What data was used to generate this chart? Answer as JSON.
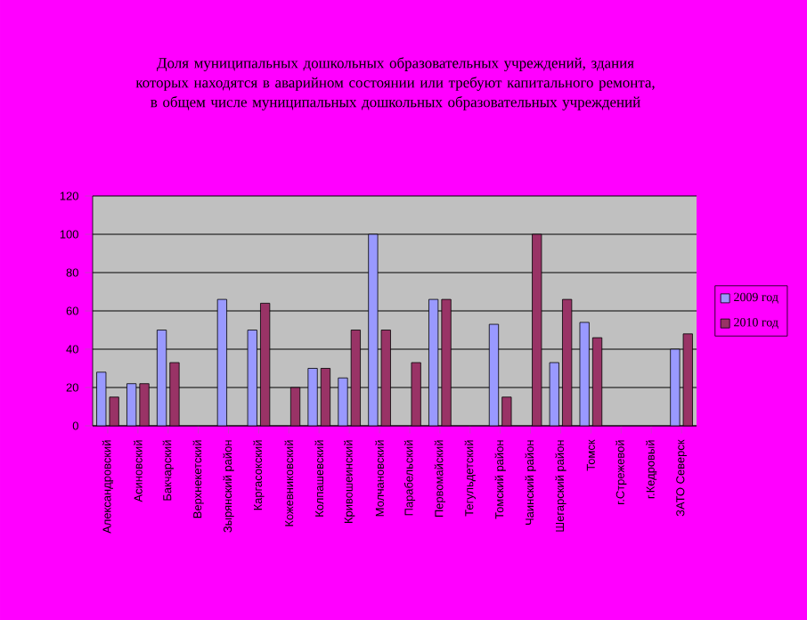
{
  "chart_data": {
    "type": "bar",
    "title": "Доля муниципальных дошкольных образовательных учреждений, здания которых находятся в аварийном состоянии или требуют капитального ремонта, в общем числе муниципальных дошкольных образовательных учреждений",
    "categories": [
      "Александровский",
      "Асиновский",
      "Бакчарский",
      "Верхнекетский",
      "Зырянский район",
      "Каргасокский",
      "Кожевниковский",
      "Колпашевский",
      "Кривошеинский",
      "Молчановский",
      "Парабельский",
      "Первомайский",
      "Тегульдетский",
      "Томский район",
      "Чаинский район",
      "Шегарский район",
      "Томск",
      "г.Стрежевой",
      "г.Кедровый",
      "ЗАТО Северск"
    ],
    "series": [
      {
        "name": "2009 год",
        "color": "#9999ff",
        "values": [
          28,
          22,
          50,
          null,
          66,
          50,
          null,
          30,
          25,
          100,
          null,
          66,
          null,
          53,
          null,
          33,
          54,
          null,
          null,
          40
        ]
      },
      {
        "name": "2010 год",
        "color": "#993366",
        "values": [
          15,
          22,
          33,
          null,
          null,
          64,
          20,
          30,
          50,
          50,
          33,
          66,
          null,
          15,
          100,
          66,
          46,
          null,
          null,
          48
        ]
      }
    ],
    "ylim": [
      0,
      120
    ],
    "yticks": [
      0,
      20,
      40,
      60,
      80,
      100,
      120
    ],
    "grid": "y",
    "legend": "right"
  }
}
